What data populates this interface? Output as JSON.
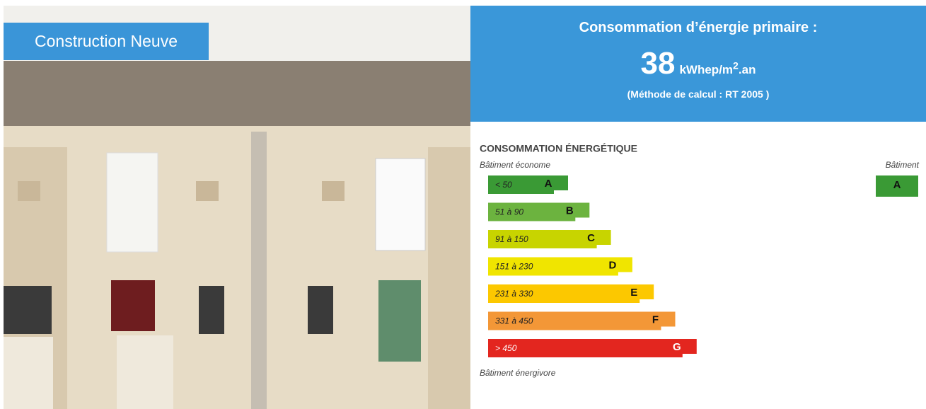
{
  "photo_label": "Construction Neuve",
  "header": {
    "title": "Consommation d’énergie primaire :",
    "value": "38",
    "unit_base": "kWhep/m",
    "unit_exponent": "2",
    "unit_suffix": ".an",
    "method": "(Méthode de calcul : RT 2005 )"
  },
  "scale": {
    "title": "CONSOMMATION ÉNERGÉTIQUE",
    "top_label": "Bâtiment économe",
    "bottom_label": "Bâtiment énergivore",
    "building_label": "Bâtiment",
    "building_class": "A",
    "classes": [
      {
        "range": "< 50",
        "letter": "A",
        "color": "#3a9a35"
      },
      {
        "range": "51 à 90",
        "letter": "B",
        "color": "#6cb33f"
      },
      {
        "range": "91 à 150",
        "letter": "C",
        "color": "#c8d400"
      },
      {
        "range": "151 à 230",
        "letter": "D",
        "color": "#f0e500"
      },
      {
        "range": "231 à 330",
        "letter": "E",
        "color": "#fcc800"
      },
      {
        "range": "331 à 450",
        "letter": "F",
        "color": "#f39737"
      },
      {
        "range": "> 450",
        "letter": "G",
        "color": "#e3261f"
      }
    ]
  }
}
